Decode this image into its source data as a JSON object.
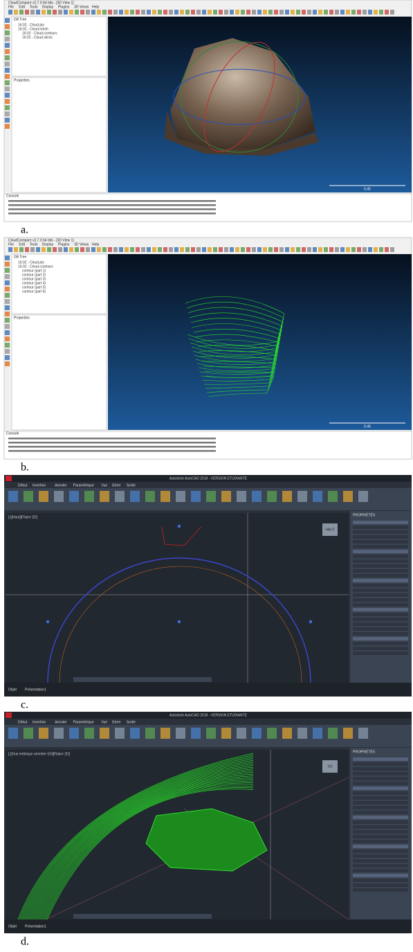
{
  "panels": [
    {
      "label": "a.",
      "app": "cloudcompare",
      "window_title": "CloudCompare v2.7.0 64 bits - [3D View 1]",
      "menu": [
        "File",
        "Edit",
        "Tools",
        "Display",
        "Plugins",
        "3D Views",
        "Help"
      ],
      "tree_title": "DB Tree",
      "tree_items": [
        "16:02 - Cloud.ply",
        "16:02 - Cloud.mesh",
        "16:02 - Cloud.contours",
        "16:02 - Cloud.slices"
      ],
      "properties_title": "Properties",
      "console_title": "Console",
      "scale_label": "0.45"
    },
    {
      "label": "b.",
      "app": "cloudcompare",
      "window_title": "CloudCompare v2.7.0 64 bits - [3D View 1]",
      "menu": [
        "File",
        "Edit",
        "Tools",
        "Display",
        "Plugins",
        "3D Views",
        "Help"
      ],
      "tree_title": "DB Tree",
      "tree_items": [
        "16:02 - Cloud.ply",
        "16:02 - Cloud.contours",
        "contour (part 1)",
        "contour (part 2)",
        "contour (part 3)",
        "contour (part 4)",
        "contour (part 5)",
        "contour (part 6)"
      ],
      "properties_title": "Properties",
      "console_title": "Console",
      "scale_label": "0.45"
    },
    {
      "label": "c.",
      "app": "autocad",
      "window_title": "Autodesk AutoCAD 2018 - VERSION ETUDIANTE",
      "tabs": [
        "Début",
        "Insertion",
        "Annoter",
        "Paramétrique",
        "Vue",
        "Gérer",
        "Sortie"
      ],
      "viewport_label": "[-][Haut][Filaire 2D]",
      "properties_title": "PROPRIÉTÉS",
      "view_cube": "HAUT",
      "layout_tabs": [
        "Objet",
        "Présentation1"
      ]
    },
    {
      "label": "d.",
      "app": "autocad",
      "window_title": "Autodesk AutoCAD 2018 - VERSION ETUDIANTE",
      "tabs": [
        "Début",
        "Insertion",
        "Annoter",
        "Paramétrique",
        "Vue",
        "Gérer",
        "Sortie"
      ],
      "viewport_label": "[-][Vue métrique orientée SO][Filaire 2D]",
      "properties_title": "PROPRIÉTÉS",
      "view_cube": "SO",
      "layout_tabs": [
        "Objet",
        "Présentation1"
      ]
    }
  ]
}
